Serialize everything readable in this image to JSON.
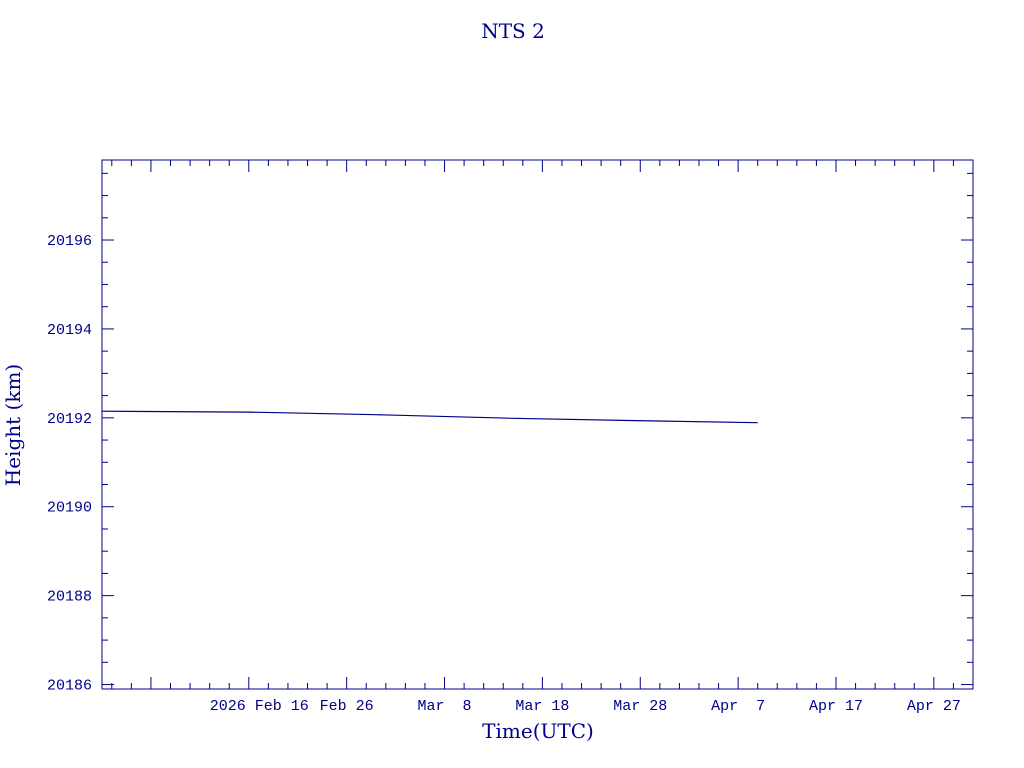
{
  "chart_data": {
    "type": "line",
    "title": "NTS 2",
    "xlabel": "Time(UTC)",
    "ylabel": "Height (km)",
    "color": "#00008b",
    "xlim": [
      "2026-02-01",
      "2026-05-01"
    ],
    "ylim": [
      20185.9,
      20197.8
    ],
    "x_ticks": [
      {
        "label": "2026 Feb 16",
        "x": "2026-02-16"
      },
      {
        "label": "Feb 26",
        "x": "2026-02-26"
      },
      {
        "label": "Mar  8",
        "x": "2026-03-08"
      },
      {
        "label": "Mar 18",
        "x": "2026-03-18"
      },
      {
        "label": "Mar 28",
        "x": "2026-03-28"
      },
      {
        "label": "Apr  7",
        "x": "2026-04-07"
      },
      {
        "label": "Apr 17",
        "x": "2026-04-17"
      },
      {
        "label": "Apr 27",
        "x": "2026-04-27"
      }
    ],
    "y_ticks": [
      20186,
      20188,
      20190,
      20192,
      20194,
      20196
    ],
    "grid": false,
    "series": [
      {
        "x": [
          "2026-02-01",
          "2026-02-16",
          "2026-03-01",
          "2026-03-15",
          "2026-03-29",
          "2026-04-09"
        ],
        "y": [
          20192.15,
          20192.13,
          20192.07,
          20191.99,
          20191.93,
          20191.89
        ]
      }
    ]
  }
}
